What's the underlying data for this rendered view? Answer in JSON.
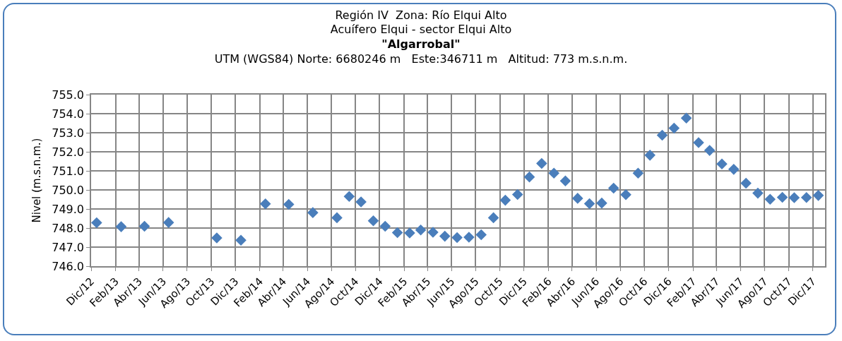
{
  "chart_data": {
    "type": "scatter",
    "title": "Región IV  Zona: Río Elqui Alto\nAcuífero Elqui - sector Elqui Alto\n\"Algarrobal\"",
    "subtitle": "UTM (WGS84) Norte: 6680246 m   Este:346711 m   Altitud: 773 m.s.n.m.",
    "ylabel": "Nivel (m.s.n.m.)",
    "x": [
      "2012-12-15",
      "2013-02-15",
      "2013-04-15",
      "2013-06-15",
      "2013-10-15",
      "2013-12-15",
      "2014-02-15",
      "2014-04-15",
      "2014-06-15",
      "2014-08-15",
      "2014-09-15",
      "2014-10-15",
      "2014-11-15",
      "2014-12-15",
      "2015-01-15",
      "2015-02-15",
      "2015-03-15",
      "2015-04-15",
      "2015-05-15",
      "2015-06-15",
      "2015-07-15",
      "2015-08-15",
      "2015-09-15",
      "2015-10-15",
      "2015-11-15",
      "2015-12-15",
      "2016-01-15",
      "2016-02-15",
      "2016-03-15",
      "2016-04-15",
      "2016-05-15",
      "2016-06-15",
      "2016-07-15",
      "2016-08-15",
      "2016-09-15",
      "2016-10-15",
      "2016-11-15",
      "2016-12-15",
      "2017-01-15",
      "2017-02-15",
      "2017-03-15",
      "2017-04-15",
      "2017-05-15",
      "2017-06-15",
      "2017-07-15",
      "2017-08-15",
      "2017-09-15",
      "2017-10-15",
      "2017-11-15",
      "2017-12-15"
    ],
    "values": [
      748.28,
      748.07,
      748.09,
      748.29,
      747.48,
      747.36,
      749.27,
      749.24,
      748.81,
      748.54,
      749.66,
      749.37,
      748.38,
      748.09,
      747.76,
      747.74,
      747.9,
      747.78,
      747.57,
      747.5,
      747.52,
      747.65,
      748.54,
      749.46,
      749.76,
      750.68,
      751.39,
      750.88,
      750.47,
      749.56,
      749.28,
      749.31,
      750.09,
      749.75,
      750.88,
      751.82,
      752.87,
      753.24,
      753.77,
      752.48,
      752.07,
      751.36,
      751.08,
      750.35,
      749.83,
      749.51,
      749.61,
      749.59,
      749.6,
      749.71
    ],
    "color": "#4a7ebb",
    "marker": "diamond",
    "xlim": [
      "2012-12-01",
      "2018-01-01"
    ],
    "xticks": [
      {
        "value": "2012-12-01",
        "label": "Dic/12"
      },
      {
        "value": "2013-02-01",
        "label": "Feb/13"
      },
      {
        "value": "2013-04-01",
        "label": "Abr/13"
      },
      {
        "value": "2013-06-01",
        "label": "Jun/13"
      },
      {
        "value": "2013-08-01",
        "label": "Ago/13"
      },
      {
        "value": "2013-10-01",
        "label": "Oct/13"
      },
      {
        "value": "2013-12-01",
        "label": "Dic/13"
      },
      {
        "value": "2014-02-01",
        "label": "Feb/14"
      },
      {
        "value": "2014-04-01",
        "label": "Abr/14"
      },
      {
        "value": "2014-06-01",
        "label": "Jun/14"
      },
      {
        "value": "2014-08-01",
        "label": "Ago/14"
      },
      {
        "value": "2014-10-01",
        "label": "Oct/14"
      },
      {
        "value": "2014-12-01",
        "label": "Dic/14"
      },
      {
        "value": "2015-02-01",
        "label": "Feb/15"
      },
      {
        "value": "2015-04-01",
        "label": "Abr/15"
      },
      {
        "value": "2015-06-01",
        "label": "Jun/15"
      },
      {
        "value": "2015-08-01",
        "label": "Ago/15"
      },
      {
        "value": "2015-10-01",
        "label": "Oct/15"
      },
      {
        "value": "2015-12-01",
        "label": "Dic/15"
      },
      {
        "value": "2016-02-01",
        "label": "Feb/16"
      },
      {
        "value": "2016-04-01",
        "label": "Abr/16"
      },
      {
        "value": "2016-06-01",
        "label": "Jun/16"
      },
      {
        "value": "2016-08-01",
        "label": "Ago/16"
      },
      {
        "value": "2016-10-01",
        "label": "Oct/16"
      },
      {
        "value": "2016-12-01",
        "label": "Dic/16"
      },
      {
        "value": "2017-02-01",
        "label": "Feb/17"
      },
      {
        "value": "2017-04-01",
        "label": "Abr/17"
      },
      {
        "value": "2017-06-01",
        "label": "Jun/17"
      },
      {
        "value": "2017-08-01",
        "label": "Ago/17"
      },
      {
        "value": "2017-10-01",
        "label": "Oct/17"
      },
      {
        "value": "2017-12-01",
        "label": "Dic/17"
      }
    ],
    "ylim": [
      746,
      755
    ],
    "yticks": [
      {
        "value": 746,
        "label": "746.0"
      },
      {
        "value": 747,
        "label": "747.0"
      },
      {
        "value": 748,
        "label": "748.0"
      },
      {
        "value": 749,
        "label": "749.0"
      },
      {
        "value": 750,
        "label": "750.0"
      },
      {
        "value": 751,
        "label": "751.0"
      },
      {
        "value": 752,
        "label": "752.0"
      },
      {
        "value": 753,
        "label": "753.0"
      },
      {
        "value": 754,
        "label": "754.0"
      },
      {
        "value": 755,
        "label": "755.0"
      }
    ],
    "grid": true,
    "legend": false
  }
}
